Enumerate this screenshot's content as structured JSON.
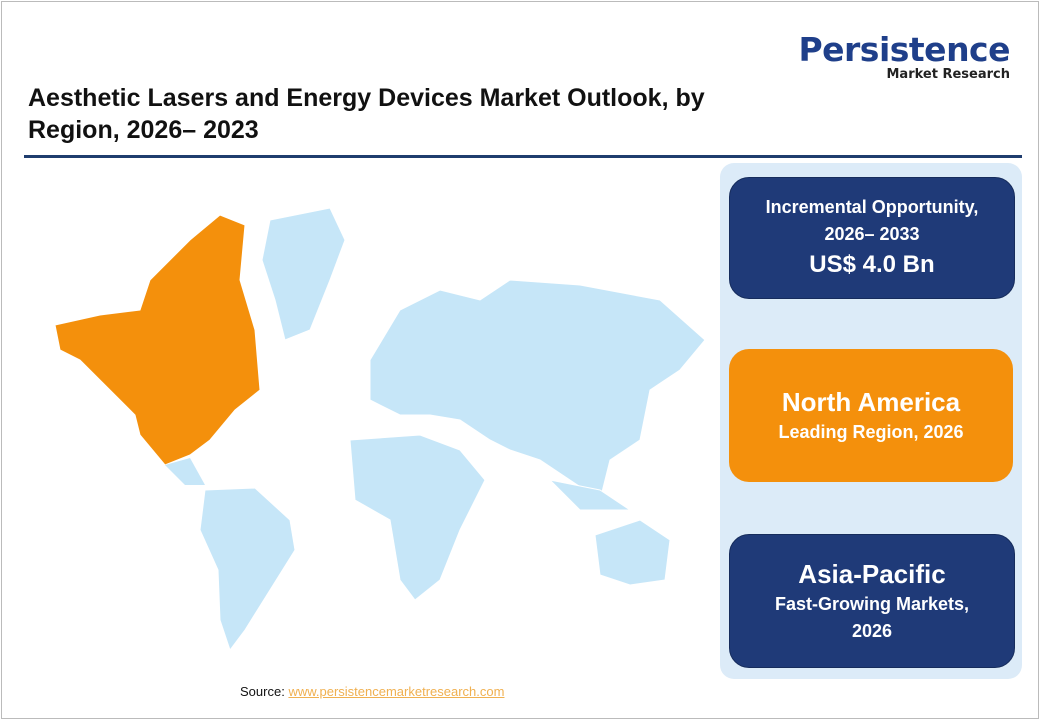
{
  "logo": {
    "name": "Persistence",
    "tagline": "Market Research",
    "color": "#1f3f8a"
  },
  "title": "Aesthetic Lasers and Energy Devices Market Outlook, by Region, 2026– 2023",
  "cards": [
    {
      "lines": [
        "Incremental Opportunity,",
        "2026– 2033",
        "US$ 4.0 Bn"
      ],
      "color": "#1f3a78"
    },
    {
      "lines": [
        "North America",
        "Leading Region, 2026"
      ],
      "color": "#f4900c"
    },
    {
      "lines": [
        "Asia-Pacific",
        "Fast-Growing Markets,",
        "2026"
      ],
      "color": "#1f3a78"
    }
  ],
  "map": {
    "highlighted_region": "North America",
    "highlight_color": "#f4900c",
    "base_color": "#c6e6f8"
  },
  "source": {
    "label": "Source:",
    "link": "www.persistencemarketresearch.com"
  }
}
